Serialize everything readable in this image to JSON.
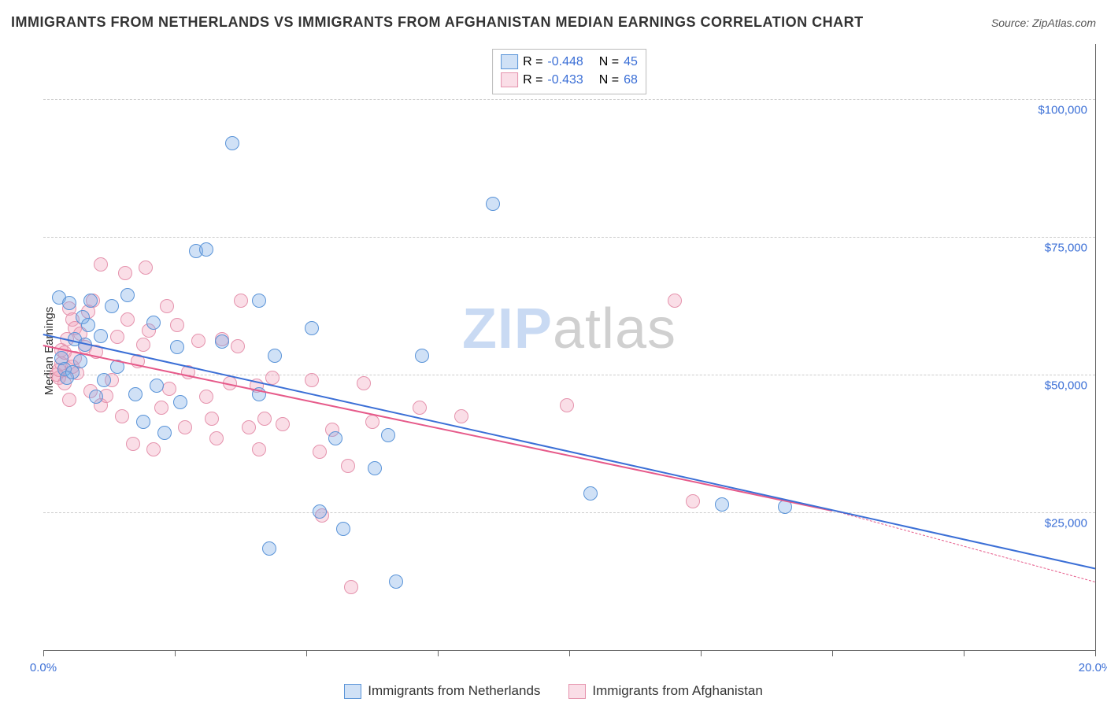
{
  "title": "IMMIGRANTS FROM NETHERLANDS VS IMMIGRANTS FROM AFGHANISTAN MEDIAN EARNINGS CORRELATION CHART",
  "source_label": "Source: ",
  "source_name": "ZipAtlas.com",
  "ylabel": "Median Earnings",
  "watermark_a": "ZIP",
  "watermark_b": "atlas",
  "chart": {
    "type": "scatter",
    "xlim": [
      0,
      20
    ],
    "ylim": [
      0,
      110000
    ],
    "x_ticks": [
      0,
      2.5,
      5,
      7.5,
      10,
      12.5,
      15,
      17.5,
      20
    ],
    "x_tick_labels": {
      "0": "0.0%",
      "20": "20.0%"
    },
    "y_gridlines": [
      25000,
      50000,
      75000,
      100000
    ],
    "y_tick_labels": {
      "25000": "$25,000",
      "50000": "$50,000",
      "75000": "$75,000",
      "100000": "$100,000"
    },
    "grid_color": "#cccccc",
    "axis_color": "#666666",
    "tick_label_color": "#3b6fd6",
    "background_color": "#ffffff",
    "marker_radius": 9,
    "marker_stroke_width": 1.5,
    "trend_width_solid": 2,
    "trend_width_dashed": 1
  },
  "series": {
    "netherlands": {
      "label": "Immigrants from Netherlands",
      "fill": "rgba(120,170,230,0.35)",
      "stroke": "#5a94d8",
      "trend_color": "#3b6fd6",
      "R": "-0.448",
      "N": "45",
      "trend": {
        "x1": 0,
        "y1": 57500,
        "x2": 20,
        "y2": 15000,
        "dash_from_x": 20
      },
      "points": [
        [
          0.3,
          64000
        ],
        [
          0.35,
          53000
        ],
        [
          0.4,
          51000
        ],
        [
          0.45,
          49500
        ],
        [
          0.5,
          63000
        ],
        [
          0.55,
          50500
        ],
        [
          0.6,
          56500
        ],
        [
          0.7,
          52500
        ],
        [
          0.75,
          60500
        ],
        [
          0.8,
          55500
        ],
        [
          0.85,
          59000
        ],
        [
          0.9,
          63500
        ],
        [
          1.0,
          46000
        ],
        [
          1.1,
          57000
        ],
        [
          1.15,
          49000
        ],
        [
          1.3,
          62500
        ],
        [
          1.4,
          51500
        ],
        [
          1.6,
          64500
        ],
        [
          1.75,
          46500
        ],
        [
          1.9,
          41500
        ],
        [
          2.1,
          59500
        ],
        [
          2.15,
          48000
        ],
        [
          2.3,
          39500
        ],
        [
          2.55,
          55000
        ],
        [
          2.6,
          45000
        ],
        [
          2.9,
          72500
        ],
        [
          3.1,
          72700
        ],
        [
          3.4,
          56000
        ],
        [
          3.6,
          92000
        ],
        [
          4.1,
          63500
        ],
        [
          4.1,
          46500
        ],
        [
          4.3,
          18500
        ],
        [
          4.4,
          53500
        ],
        [
          5.1,
          58500
        ],
        [
          5.25,
          25200
        ],
        [
          5.55,
          38500
        ],
        [
          5.7,
          22000
        ],
        [
          6.3,
          33000
        ],
        [
          6.55,
          39000
        ],
        [
          6.7,
          12500
        ],
        [
          7.2,
          53500
        ],
        [
          8.55,
          81000
        ],
        [
          10.4,
          28500
        ],
        [
          12.9,
          26500
        ],
        [
          14.1,
          26000
        ]
      ]
    },
    "afghanistan": {
      "label": "Immigrants from Afghanistan",
      "fill": "rgba(240,160,185,0.35)",
      "stroke": "#e593ad",
      "trend_color": "#e65a8a",
      "R": "-0.433",
      "N": "68",
      "trend": {
        "x1": 0,
        "y1": 55500,
        "x2": 15,
        "y2": 25500,
        "dash_from_x": 15,
        "dash_to_x": 20,
        "dash_to_y": 12500
      },
      "points": [
        [
          0.25,
          50000
        ],
        [
          0.3,
          49500
        ],
        [
          0.3,
          50800
        ],
        [
          0.35,
          52000
        ],
        [
          0.35,
          54500
        ],
        [
          0.4,
          54000
        ],
        [
          0.4,
          48500
        ],
        [
          0.45,
          56500
        ],
        [
          0.5,
          62000
        ],
        [
          0.5,
          45500
        ],
        [
          0.55,
          51500
        ],
        [
          0.55,
          60000
        ],
        [
          0.6,
          53000
        ],
        [
          0.6,
          58500
        ],
        [
          0.65,
          50300
        ],
        [
          0.7,
          57500
        ],
        [
          0.8,
          55000
        ],
        [
          0.85,
          61500
        ],
        [
          0.9,
          47000
        ],
        [
          0.95,
          63500
        ],
        [
          1.0,
          54200
        ],
        [
          1.1,
          70000
        ],
        [
          1.1,
          44500
        ],
        [
          1.2,
          46200
        ],
        [
          1.3,
          49000
        ],
        [
          1.4,
          56800
        ],
        [
          1.5,
          42500
        ],
        [
          1.55,
          68500
        ],
        [
          1.6,
          60000
        ],
        [
          1.7,
          37500
        ],
        [
          1.8,
          52500
        ],
        [
          1.9,
          55500
        ],
        [
          1.95,
          69500
        ],
        [
          2.0,
          58000
        ],
        [
          2.1,
          36500
        ],
        [
          2.25,
          44000
        ],
        [
          2.35,
          62500
        ],
        [
          2.4,
          47500
        ],
        [
          2.55,
          59000
        ],
        [
          2.7,
          40500
        ],
        [
          2.75,
          50500
        ],
        [
          2.95,
          56200
        ],
        [
          3.1,
          46000
        ],
        [
          3.2,
          42000
        ],
        [
          3.3,
          38500
        ],
        [
          3.4,
          56500
        ],
        [
          3.55,
          48500
        ],
        [
          3.7,
          55200
        ],
        [
          3.75,
          63500
        ],
        [
          3.9,
          40500
        ],
        [
          4.05,
          48000
        ],
        [
          4.1,
          36500
        ],
        [
          4.2,
          42000
        ],
        [
          4.35,
          49500
        ],
        [
          4.55,
          41000
        ],
        [
          5.1,
          49000
        ],
        [
          5.25,
          36000
        ],
        [
          5.3,
          24500
        ],
        [
          5.5,
          40000
        ],
        [
          5.8,
          33500
        ],
        [
          5.85,
          11500
        ],
        [
          6.1,
          48500
        ],
        [
          6.25,
          41500
        ],
        [
          7.15,
          44000
        ],
        [
          7.95,
          42500
        ],
        [
          9.95,
          44500
        ],
        [
          12.0,
          63500
        ],
        [
          12.35,
          27000
        ]
      ]
    }
  },
  "legend_text": {
    "R_label": "R =",
    "N_label": "N ="
  }
}
